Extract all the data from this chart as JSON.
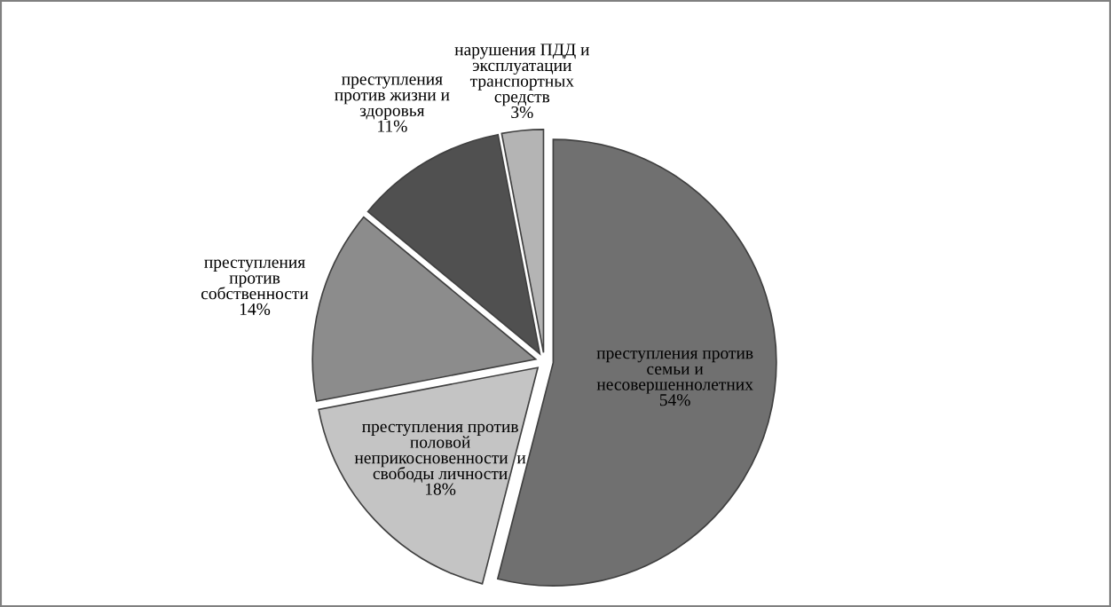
{
  "chart_data": {
    "type": "pie",
    "categories": [
      "преступления против\nсемьи и\nнесовершеннолетних",
      "преступления против\nполовой\nнеприкосновенности  и\nсвободы личности",
      "преступления\nпротив\nсобственности",
      "преступления\nпротив жизни и\nздоровья",
      "нарушения ПДД и\nэксплуатации\nтранспортных\nсредств"
    ],
    "values": [
      54,
      18,
      14,
      11,
      3
    ],
    "colors": [
      "#707070",
      "#c4c4c4",
      "#8c8c8c",
      "#505050",
      "#b4b4b4"
    ],
    "value_labels": [
      "54%",
      "18%",
      "14%",
      "11%",
      "3%"
    ]
  }
}
